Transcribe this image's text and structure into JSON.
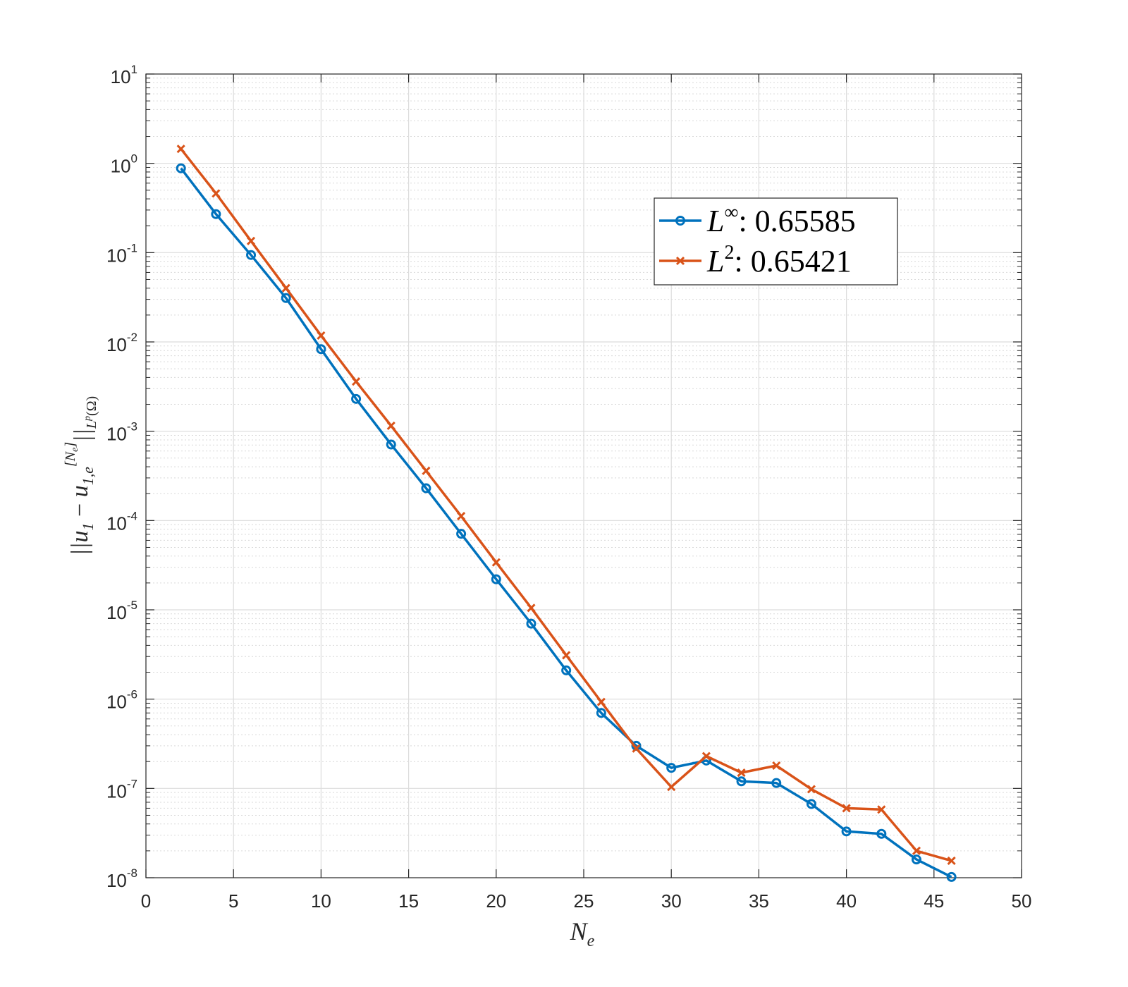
{
  "chart_data": {
    "type": "line",
    "title": "",
    "xlabel": "N_e",
    "ylabel": "||u_1 - u_{1,e}^{[N_e]}||_{L^p(Ω)}",
    "xlim": [
      0,
      50
    ],
    "ylim_log10": [
      -8,
      1
    ],
    "yscale": "log",
    "grid": true,
    "minor_grid": true,
    "legend_position": "upper-right",
    "x_ticks": [
      "0",
      "5",
      "10",
      "15",
      "20",
      "25",
      "30",
      "35",
      "40",
      "45",
      "50"
    ],
    "y_ticks": [
      {
        "base": "10",
        "exp": "1"
      },
      {
        "base": "10",
        "exp": "0"
      },
      {
        "base": "10",
        "exp": "-1"
      },
      {
        "base": "10",
        "exp": "-2"
      },
      {
        "base": "10",
        "exp": "-3"
      },
      {
        "base": "10",
        "exp": "-4"
      },
      {
        "base": "10",
        "exp": "-5"
      },
      {
        "base": "10",
        "exp": "-6"
      },
      {
        "base": "10",
        "exp": "-7"
      },
      {
        "base": "10",
        "exp": "-8"
      }
    ],
    "x": [
      2,
      4,
      6,
      8,
      10,
      12,
      14,
      16,
      18,
      20,
      22,
      24,
      26,
      28,
      30,
      32,
      34,
      36,
      38,
      40,
      42,
      44,
      46
    ],
    "series": [
      {
        "name": "L∞: 0.65585",
        "legend_symbol": "L",
        "legend_sup": "∞",
        "legend_value": ": 0.65585",
        "color": "#0072BD",
        "marker": "circle",
        "values": [
          0.88,
          0.27,
          0.094,
          0.031,
          0.0083,
          0.0023,
          0.00071,
          0.00023,
          7.1e-05,
          2.2e-05,
          7e-06,
          2.1e-06,
          7e-07,
          3e-07,
          1.7e-07,
          2.05e-07,
          1.2e-07,
          1.15e-07,
          6.7e-08,
          3.3e-08,
          3.1e-08,
          1.6e-08,
          1.02e-08
        ]
      },
      {
        "name": "L2: 0.65421",
        "legend_symbol": "L",
        "legend_sup": "2",
        "legend_value": ": 0.65421",
        "color": "#D95319",
        "marker": "x",
        "values": [
          1.45,
          0.46,
          0.135,
          0.04,
          0.0118,
          0.0036,
          0.00115,
          0.00036,
          0.000112,
          3.4e-05,
          1.05e-05,
          3.1e-06,
          9.3e-07,
          2.8e-07,
          1.04e-07,
          2.3e-07,
          1.5e-07,
          1.8e-07,
          9.8e-08,
          6e-08,
          5.8e-08,
          2e-08,
          1.55e-08
        ]
      }
    ]
  }
}
